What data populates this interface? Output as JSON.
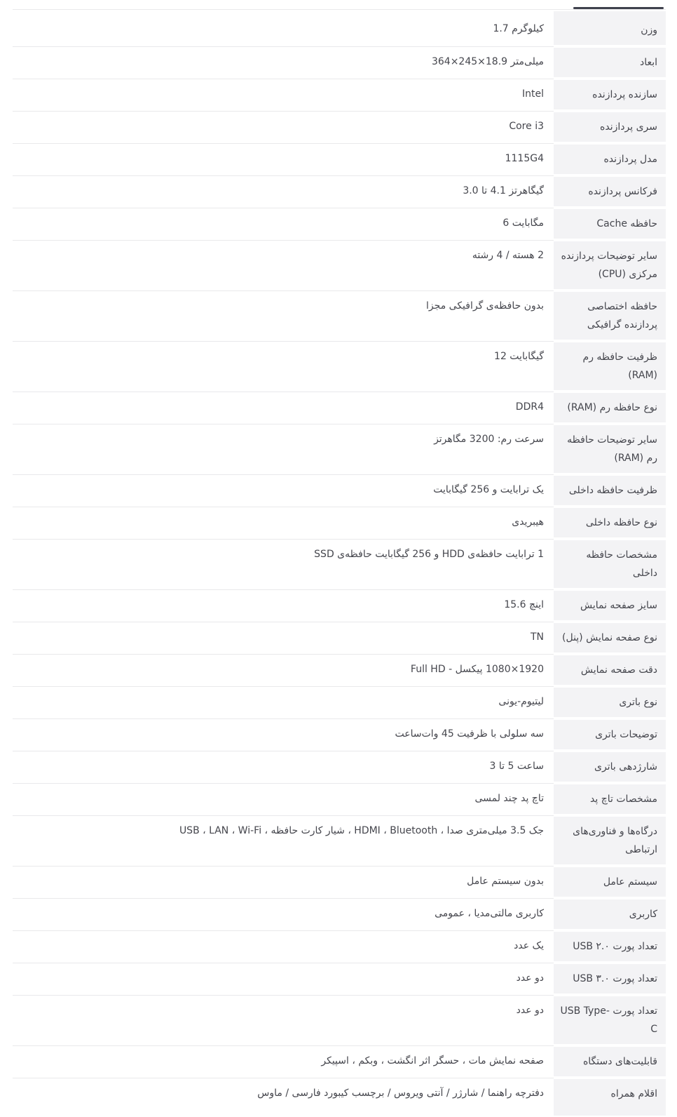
{
  "colors": {
    "page_bg": "#ffffff",
    "label_bg": "#f3f3f5",
    "border": "#e9e9eb",
    "text": "#45464d",
    "indicator": "#3f414d"
  },
  "table": {
    "rows": [
      {
        "label": "وزن",
        "value": "⁦1.7 کیلوگرم⁩"
      },
      {
        "label": "ابعاد",
        "value": "⁦364×245×18.9 میلی‌متر⁩"
      },
      {
        "label": "سازنده پردازنده",
        "value": "Intel"
      },
      {
        "label": "سری پردازنده",
        "value": "Core i3"
      },
      {
        "label": "مدل پردازنده",
        "value": "1115G4"
      },
      {
        "label": "فرکانس پردازنده",
        "value": "⁦3.0 تا ‎4.1 گیگاهرتز⁩"
      },
      {
        "label": "حافظه Cache",
        "value": "⁦6 مگابایت⁩"
      },
      {
        "label": "سایر توضیحات پردازنده مرکزی (CPU)",
        "value": "2 هسته / 4 رشته"
      },
      {
        "label": "حافظه اختصاصی پردازنده گرافیکی",
        "value": "بدون حافظه‌ی گرافیکی مجزا"
      },
      {
        "label": "ظرفیت حافظه رم (RAM)",
        "value": "⁦12 گیگابایت⁩"
      },
      {
        "label": "نوع حافظه رم (RAM)",
        "value": "DDR4"
      },
      {
        "label": "سایر توضیحات حافظه رم (RAM)",
        "value": "سرعت رم: 3200 مگاهرتز"
      },
      {
        "label": "ظرفیت حافظه داخلی",
        "value": "یک ترابایت و 256 گیگابایت"
      },
      {
        "label": "نوع حافظه داخلی",
        "value": "هیبریدی"
      },
      {
        "label": "مشخصات حافظه داخلی",
        "value": "1 ترابایت حافظه‌ی HDD و 256 گیگابایت حافظه‌ی SSD"
      },
      {
        "label": "سایز صفحه نمایش",
        "value": "⁦15.6 اینچ⁩"
      },
      {
        "label": "نوع صفحه نمایش (پنل)",
        "value": "TN"
      },
      {
        "label": "دقت صفحه نمایش",
        "value": "1920×1080 پیکسل - Full HD"
      },
      {
        "label": "نوع باتری",
        "value": "لیتیوم-یونی"
      },
      {
        "label": "توضیحات باتری",
        "value": "سه سلولی با ظرفیت 45 وات‌ساعت"
      },
      {
        "label": "شارژدهی باتری",
        "value": "⁦3 تا ‎5 ساعت⁩"
      },
      {
        "label": "مشخصات تاچ پد",
        "value": "تاچ پد چند لمسی"
      },
      {
        "label": "درگاه‌ها و فناوری‌های ارتباطی",
        "value": "جک 3.5 میلی‌متری صدا ، HDMI ، Bluetooth ، شیار کارت حافظه ، USB ، LAN ، Wi-Fi"
      },
      {
        "label": "سیستم عامل",
        "value": "بدون سیستم عامل"
      },
      {
        "label": "کاربری",
        "value": "کاربری مالتی‌مدیا ، عمومی"
      },
      {
        "label": "تعداد پورت USB ۲.۰",
        "value": "یک عدد"
      },
      {
        "label": "تعداد پورت USB ۳.۰",
        "value": "دو عدد"
      },
      {
        "label": "تعداد پورت USB Type-C",
        "value": "دو عدد"
      },
      {
        "label": "قابلیت‌های دستگاه",
        "value": "صفحه نمایش مات ، حسگر اثر انگشت ، وبکم ، اسپیکر"
      },
      {
        "label": "اقلام همراه",
        "value": "دفترچه راهنما / شارژر / آنتی ویروس / برچسب کیبورد فارسی / ماوس"
      }
    ]
  }
}
